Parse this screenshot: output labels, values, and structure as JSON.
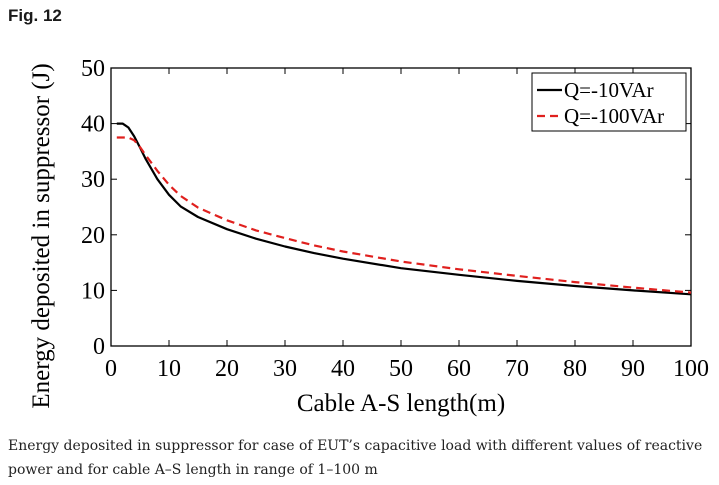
{
  "figure": {
    "label": "Fig. 12",
    "caption": "Energy deposited in suppressor for case of EUT’s capacitive load with different values of reactive power and for cable A–S length in range of 1–100 m"
  },
  "colors": {
    "series1": "#000000",
    "series2": "#e0201e",
    "axis": "#000000"
  },
  "chart_data": {
    "type": "line",
    "title": "",
    "xlabel": "Cable A-S length(m)",
    "ylabel": "Energy deposited in suppressor (J)",
    "xlim": [
      0,
      100
    ],
    "ylim": [
      0,
      50
    ],
    "xticks": [
      0,
      10,
      20,
      30,
      40,
      50,
      60,
      70,
      80,
      90,
      100
    ],
    "yticks": [
      0,
      10,
      20,
      30,
      40,
      50
    ],
    "grid": false,
    "legend_position": "top-right",
    "series": [
      {
        "name": "Q=-10VAr",
        "style": "solid",
        "color": "#000000",
        "x": [
          1,
          2,
          3,
          4,
          5,
          6,
          8,
          10,
          12,
          15,
          20,
          25,
          30,
          35,
          40,
          50,
          60,
          70,
          80,
          90,
          100
        ],
        "y": [
          40.0,
          40.0,
          39.3,
          37.7,
          35.7,
          33.6,
          30.0,
          27.2,
          25.1,
          23.2,
          21.0,
          19.3,
          17.9,
          16.7,
          15.7,
          14.0,
          12.8,
          11.7,
          10.8,
          10.0,
          9.3
        ]
      },
      {
        "name": "Q=-100VAr",
        "style": "dashed",
        "color": "#e0201e",
        "x": [
          1,
          2,
          3,
          4,
          5,
          6,
          8,
          10,
          12,
          15,
          20,
          25,
          30,
          35,
          40,
          50,
          60,
          70,
          80,
          90,
          100
        ],
        "y": [
          37.5,
          37.5,
          37.5,
          37.0,
          35.8,
          34.3,
          31.5,
          29.0,
          27.0,
          24.9,
          22.6,
          20.8,
          19.4,
          18.1,
          17.0,
          15.2,
          13.8,
          12.6,
          11.5,
          10.5,
          9.6
        ]
      }
    ]
  }
}
